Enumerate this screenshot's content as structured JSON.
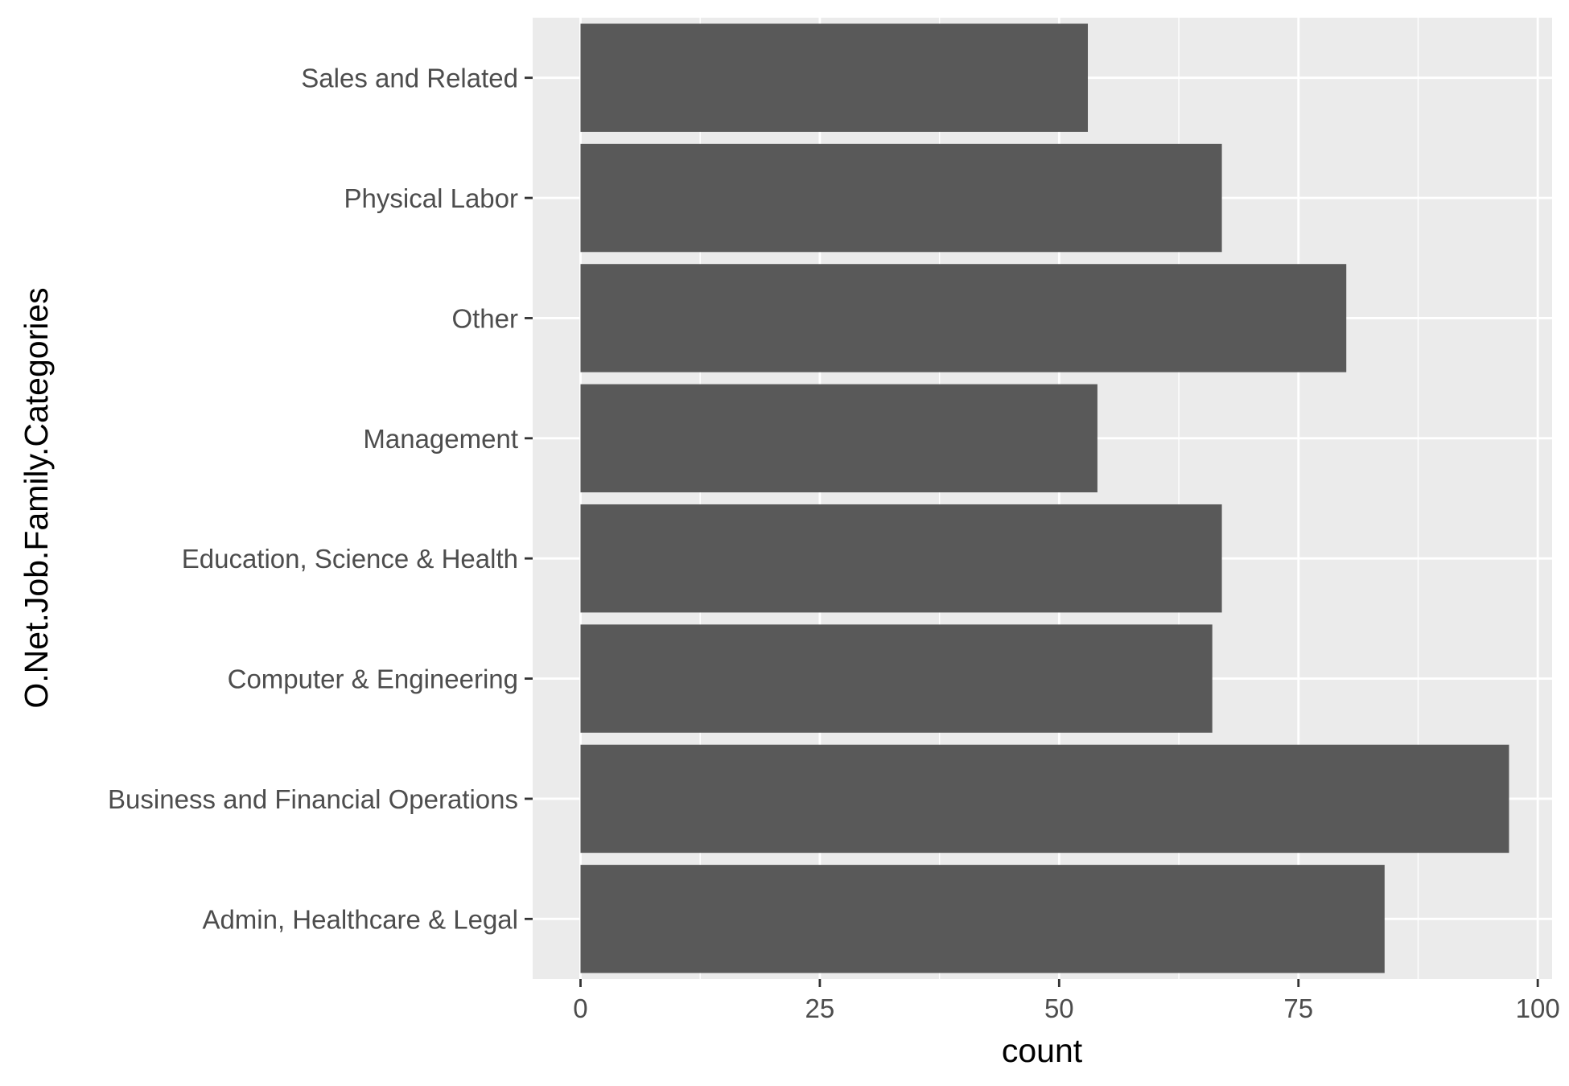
{
  "chart_data": {
    "type": "bar",
    "orientation": "horizontal",
    "title": "",
    "xlabel": "count",
    "ylabel": "O.Net.Job.Family.Categories",
    "categories": [
      "Admin, Healthcare & Legal",
      "Business and Financial Operations",
      "Computer & Engineering",
      "Education, Science & Health",
      "Management",
      "Other",
      "Physical Labor",
      "Sales and Related"
    ],
    "values": [
      84,
      97,
      66,
      67,
      54,
      80,
      67,
      53
    ],
    "xlim": [
      -5,
      101.5
    ],
    "xticks": [
      0,
      25,
      50,
      75,
      100
    ],
    "grid": true,
    "legend": "none",
    "colors": {
      "panel": "#EBEBEB",
      "grid": "#FFFFFF",
      "bar": "#595959",
      "tick_text": "#4D4D4D",
      "tick_mark": "#333333"
    }
  }
}
